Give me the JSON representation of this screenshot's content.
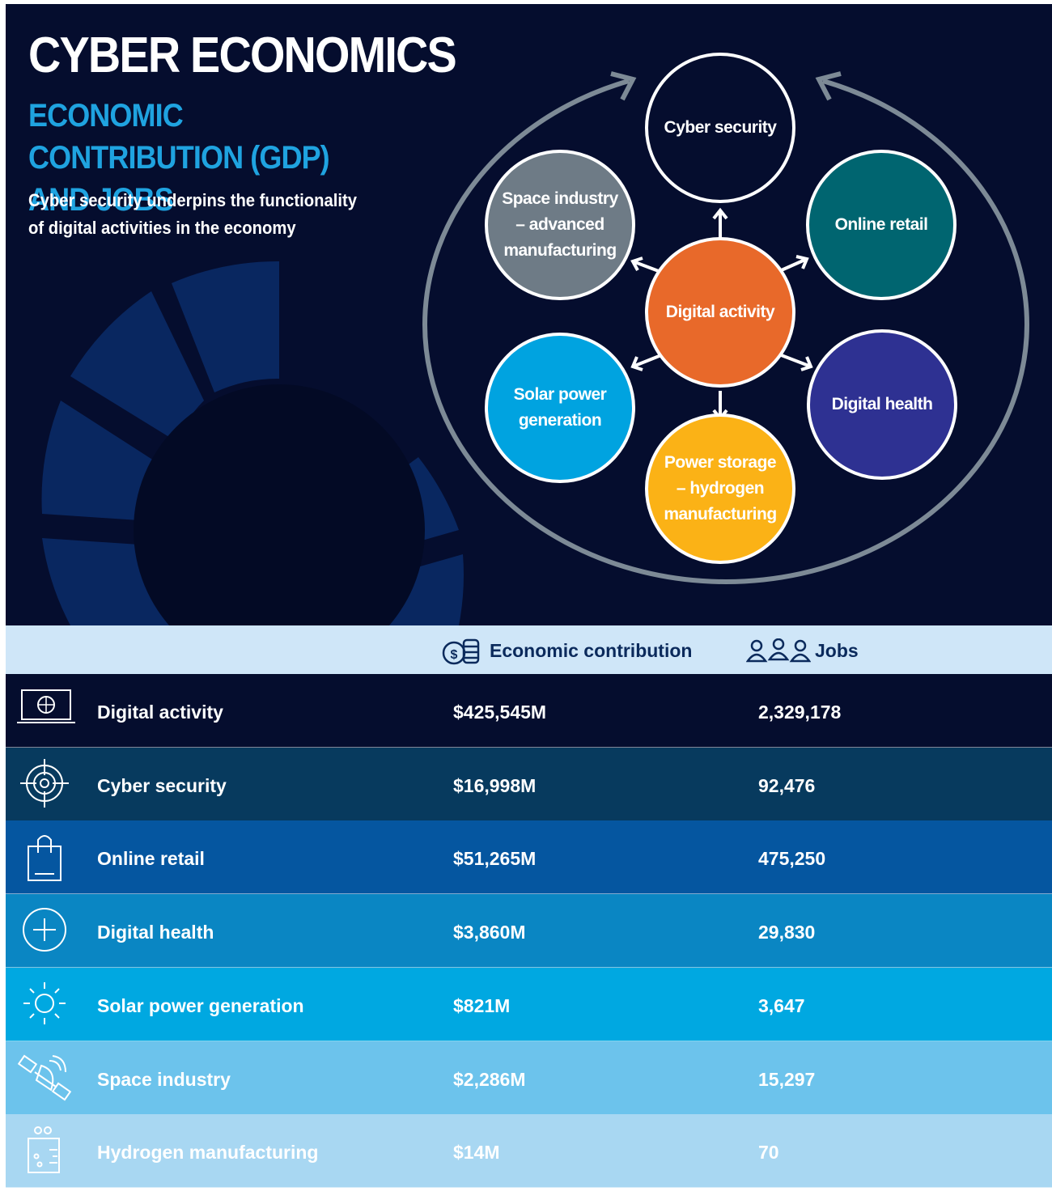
{
  "header": {
    "title": "CYBER ECONOMICS",
    "subtitle": "ECONOMIC CONTRIBUTION (GDP) AND JOBS",
    "description": "Cyber security underpins the functionality of digital activities in the economy"
  },
  "diagram": {
    "center": "Digital activity",
    "nodes": [
      "Cyber security",
      "Online retail",
      "Digital health",
      "Power storage – hydrogen manufacturing",
      "Solar power generation",
      "Space industry – advanced manufacturing"
    ]
  },
  "table": {
    "columns": [
      "Economic contribution",
      "Jobs"
    ],
    "rows": [
      [
        "Digital activity",
        "$425,545M",
        "2,329,178"
      ],
      [
        "Cyber security",
        "$16,998M",
        "92,476"
      ],
      [
        "Online retail",
        "$51,265M",
        "475,250"
      ],
      [
        "Digital health",
        "$3,860M",
        "29,830"
      ],
      [
        "Solar power generation",
        "$821M",
        "3,647"
      ],
      [
        "Space industry",
        "$2,286M",
        "15,297"
      ],
      [
        "Hydrogen manufacturing",
        "$14M",
        "70"
      ]
    ]
  }
}
